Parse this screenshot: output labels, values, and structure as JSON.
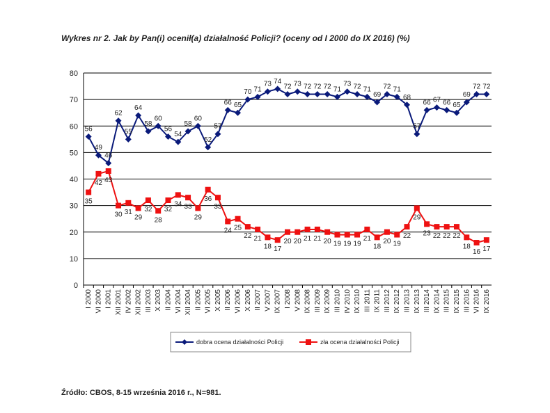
{
  "chart_data": {
    "type": "line",
    "title": "Wykres nr 2. Jak by Pan(i) ocenił(a) działalność Policji? (oceny od I 2000 do IX 2016) (%)",
    "source": "Źródło: CBOS, 8-15 września 2016 r., N=981.",
    "categories": [
      "I 2000",
      "VI 2000",
      "I 2001",
      "XII 2001",
      "IV 2002",
      "XII 2002",
      "III 2003",
      "X 2003",
      "II 2004",
      "VI 2004",
      "XII 2004",
      "II 2005",
      "VI 2005",
      "X 2005",
      "II 2006",
      "VI 2006",
      "X 2006",
      "II 2007",
      "V 2007",
      "IX 2007",
      "I 2008",
      "V 2008",
      "IX 2008",
      "III 2009",
      "IX 2009",
      "III 2010",
      "IV 2010",
      "IX 2010",
      "III 2011",
      "IX 2011",
      "III 2012",
      "IX 2012",
      "III 2013",
      "IX 2013",
      "III 2014",
      "IX 2014",
      "III 2015",
      "IX 2015",
      "III 2016",
      "VI 2016",
      "IX 2016"
    ],
    "series": [
      {
        "name": "dobra ocena działalności Policji",
        "color": "#0a1a7a",
        "marker": "diamond",
        "values": [
          56,
          49,
          46,
          62,
          55,
          64,
          58,
          60,
          56,
          54,
          58,
          60,
          52,
          57,
          66,
          65,
          70,
          71,
          73,
          74,
          72,
          73,
          72,
          72,
          72,
          71,
          73,
          72,
          71,
          69,
          72,
          71,
          68,
          57,
          66,
          67,
          66,
          65,
          69,
          72,
          72
        ]
      },
      {
        "name": "zła ocena działalności Policji",
        "color": "#ee1111",
        "marker": "square",
        "values": [
          35,
          42,
          43,
          30,
          31,
          29,
          32,
          28,
          32,
          34,
          33,
          29,
          36,
          33,
          24,
          25,
          22,
          21,
          18,
          17,
          20,
          20,
          21,
          21,
          20,
          19,
          19,
          19,
          21,
          18,
          20,
          19,
          22,
          29,
          23,
          22,
          22,
          22,
          18,
          16,
          17
        ]
      }
    ],
    "ylim": [
      0,
      80
    ],
    "yticks": [
      0,
      10,
      20,
      30,
      40,
      50,
      60,
      70,
      80
    ],
    "grid": true
  }
}
